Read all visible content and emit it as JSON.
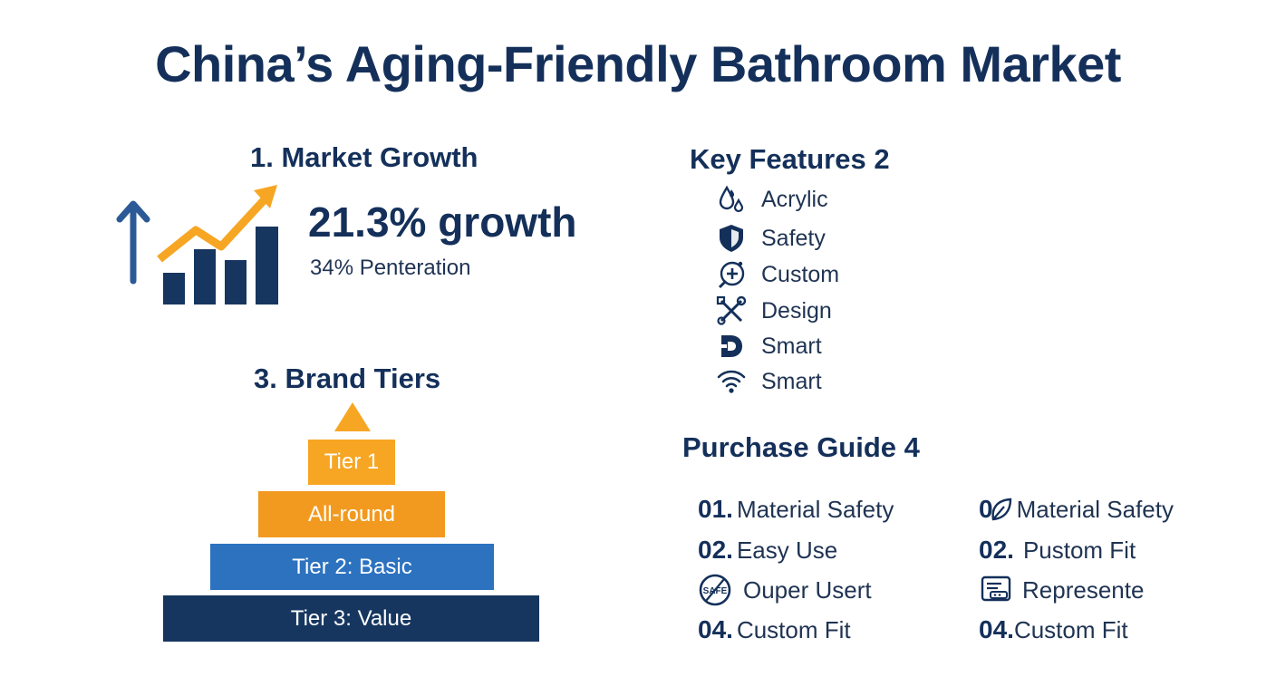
{
  "title": "China’s Aging-Friendly Bathroom Market",
  "market_growth": {
    "heading": "1. Market Growth",
    "growth_value": "21.3% growth",
    "penetration": "34% Penteration",
    "icon": "growth-chart-icon",
    "colors": {
      "bars": "#163660",
      "trend": "#f6a623",
      "arrow": "#2c5a96"
    }
  },
  "key_features": {
    "heading": "Key Features 2",
    "items": [
      {
        "label": "Acrylic",
        "icon": "water-drops-icon"
      },
      {
        "label": "Safety",
        "icon": "shield-icon"
      },
      {
        "label": "Custom",
        "icon": "custom-plus-icon"
      },
      {
        "label": "Design",
        "icon": "tools-icon"
      },
      {
        "label": "Smart",
        "icon": "d-logo-icon"
      },
      {
        "label": "Smart",
        "icon": "wifi-icon"
      }
    ]
  },
  "brand_tiers": {
    "heading": "3. Brand Tiers",
    "tiers": [
      {
        "label": "Tier 1",
        "color": "#f6a623"
      },
      {
        "label": "All-round",
        "color": "#f29a1f"
      },
      {
        "label": "Tier 2: Basic",
        "color": "#2c72bf"
      },
      {
        "label": "Tier 3: Value",
        "color": "#163660"
      }
    ]
  },
  "purchase_guide": {
    "heading": "Purchase Guide 4",
    "left": [
      {
        "num": "01.",
        "label": "Material Safety"
      },
      {
        "num": "02.",
        "label": "Easy Use"
      },
      {
        "num": "",
        "icon": "safe-badge-icon",
        "icon_text": "SAFE",
        "label": "Ouper Usert"
      },
      {
        "num": "04.",
        "label": "Custom Fit"
      }
    ],
    "right": [
      {
        "num": "0",
        "icon": "leaf-icon",
        "label": "Material Safety"
      },
      {
        "num": "02.",
        "label": "Pustom Fit"
      },
      {
        "num": "",
        "icon": "control-panel-icon",
        "label": "Represente"
      },
      {
        "num": "04.",
        "label": "Custom Fit"
      }
    ]
  }
}
